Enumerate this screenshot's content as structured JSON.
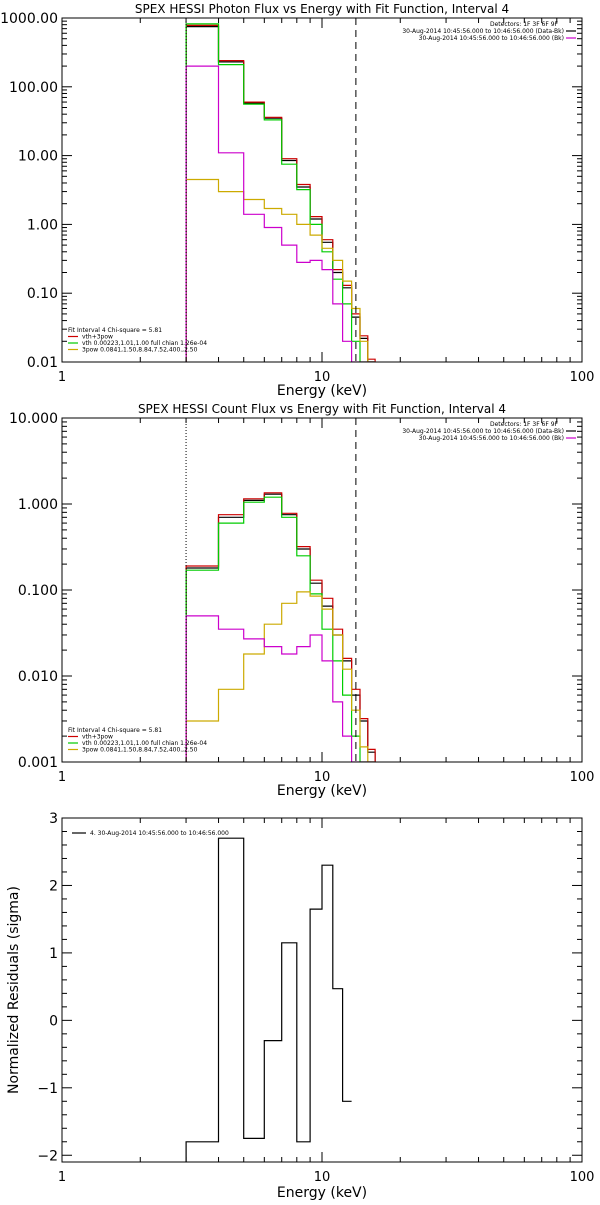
{
  "chart_data": [
    {
      "type": "line",
      "title": "SPEX HESSI Photon Flux vs Energy with Fit Function, Interval 4",
      "xlabel": "Energy (keV)",
      "ylabel": "",
      "x_scale": "log",
      "y_scale": "log",
      "xlim": [
        1,
        100
      ],
      "ylim": [
        0.01,
        1000
      ],
      "x_ticks": [
        {
          "v": 1,
          "label": "1"
        },
        {
          "v": 10,
          "label": "10"
        },
        {
          "v": 100,
          "label": "100"
        }
      ],
      "y_ticks": [
        {
          "v": 0.01,
          "label": "0.01"
        },
        {
          "v": 0.1,
          "label": "0.10"
        },
        {
          "v": 1,
          "label": "1.00"
        },
        {
          "v": 10,
          "label": "10.00"
        },
        {
          "v": 100,
          "label": "100.00"
        },
        {
          "v": 1000,
          "label": "1000.00"
        }
      ],
      "vlines": [
        {
          "x": 3.0,
          "style": "dotted",
          "color": "#000000"
        },
        {
          "x": 13.5,
          "style": "dashed",
          "color": "#000000"
        }
      ],
      "legend_top_right": {
        "header": "Detectors: 1F 3F 6F 9F",
        "entries": [
          {
            "label": "30-Aug-2014 10:45:56.000 to 10:46:56.000 (Data-Bk)",
            "color": "#000000"
          },
          {
            "label": "30-Aug-2014 10:45:56.000 to 10:46:56.000 (Bk)",
            "color": "#cc00cc"
          }
        ]
      },
      "legend_bottom_left": {
        "header": "Fit Interval  4    Chi-square = 5.81",
        "entries": [
          {
            "label": "vth+3pow",
            "color": "#cc0000"
          },
          {
            "label": "vth 0.00223,1.01,1.00  full chian 1.26e-04",
            "color": "#00cc00"
          },
          {
            "label": "3pow 0.0841,1.50,8.84,7.52,400.,2.50",
            "color": "#ccaa00"
          }
        ]
      },
      "edges": [
        3.0,
        4.0,
        5.0,
        6.0,
        7.0,
        8.0,
        9.0,
        10.0,
        11.0,
        12.0,
        13.0,
        14.0,
        15.0,
        16.0
      ],
      "series": [
        {
          "name": "Data-Bk",
          "color": "#000000",
          "values": [
            750,
            230,
            58,
            35,
            8.5,
            3.5,
            1.2,
            0.55,
            0.2,
            0.12,
            0.045,
            0.022,
            0.01
          ]
        },
        {
          "name": "vth+3pow",
          "color": "#cc0000",
          "values": [
            780,
            240,
            60,
            36,
            9,
            3.8,
            1.3,
            0.6,
            0.22,
            0.13,
            0.05,
            0.024,
            0.011
          ]
        },
        {
          "name": "vth",
          "color": "#00cc00",
          "values": [
            820,
            210,
            56,
            33,
            7.5,
            3.2,
            1.0,
            0.4,
            0.16,
            0.07,
            0.02,
            0.01,
            0.01
          ]
        },
        {
          "name": "3pow",
          "color": "#ccaa00",
          "values": [
            4.5,
            3.0,
            2.3,
            1.7,
            1.4,
            1.0,
            0.7,
            0.45,
            0.3,
            0.15,
            0.06,
            0.02,
            0.01
          ]
        },
        {
          "name": "Bk",
          "color": "#cc00cc",
          "values": [
            200,
            11,
            1.4,
            0.9,
            0.5,
            0.28,
            0.3,
            0.22,
            0.07,
            0.02,
            0.01,
            0.01,
            0.01
          ]
        }
      ]
    },
    {
      "type": "line",
      "title": "SPEX HESSI Count Flux vs Energy with Fit Function, Interval 4",
      "xlabel": "Energy (keV)",
      "ylabel": "",
      "x_scale": "log",
      "y_scale": "log",
      "xlim": [
        1,
        100
      ],
      "ylim": [
        0.001,
        10
      ],
      "x_ticks": [
        {
          "v": 1,
          "label": "1"
        },
        {
          "v": 10,
          "label": "10"
        },
        {
          "v": 100,
          "label": "100"
        }
      ],
      "y_ticks": [
        {
          "v": 0.001,
          "label": "0.001"
        },
        {
          "v": 0.01,
          "label": "0.010"
        },
        {
          "v": 0.1,
          "label": "0.100"
        },
        {
          "v": 1,
          "label": "1.000"
        },
        {
          "v": 10,
          "label": "10.000"
        }
      ],
      "vlines": [
        {
          "x": 3.0,
          "style": "dotted",
          "color": "#000000"
        },
        {
          "x": 13.5,
          "style": "dashed",
          "color": "#000000"
        }
      ],
      "legend_top_right": {
        "header": "Detectors: 1F 3F 6F 9F",
        "entries": [
          {
            "label": "30-Aug-2014 10:45:56.000 to 10:46:56.000 (Data-Bk)",
            "color": "#000000"
          },
          {
            "label": "30-Aug-2014 10:45:56.000 to 10:46:56.000 (Bk)",
            "color": "#cc00cc"
          }
        ]
      },
      "legend_bottom_left": {
        "header": "Fit Interval  4    Chi-square = 5.81",
        "entries": [
          {
            "label": "vth+3pow",
            "color": "#cc0000"
          },
          {
            "label": "vth 0.00223,1.01,1.00  full chian 1.26e-04",
            "color": "#00cc00"
          },
          {
            "label": "3pow 0.0841,1.50,8.84,7.52,400.,2.50",
            "color": "#ccaa00"
          }
        ]
      },
      "edges": [
        3.0,
        4.0,
        5.0,
        6.0,
        7.0,
        8.0,
        9.0,
        10.0,
        11.0,
        12.0,
        13.0,
        14.0,
        15.0,
        16.0
      ],
      "series": [
        {
          "name": "Data-Bk",
          "color": "#000000",
          "values": [
            0.18,
            0.7,
            1.1,
            1.3,
            0.75,
            0.3,
            0.12,
            0.065,
            0.03,
            0.015,
            0.006,
            0.003,
            0.0013
          ]
        },
        {
          "name": "vth+3pow",
          "color": "#cc0000",
          "values": [
            0.19,
            0.75,
            1.15,
            1.35,
            0.78,
            0.32,
            0.13,
            0.08,
            0.035,
            0.016,
            0.007,
            0.0032,
            0.0014
          ]
        },
        {
          "name": "vth",
          "color": "#00cc00",
          "values": [
            0.17,
            0.6,
            1.05,
            1.2,
            0.7,
            0.25,
            0.09,
            0.035,
            0.015,
            0.006,
            0.002,
            0.001,
            0.001
          ]
        },
        {
          "name": "3pow",
          "color": "#ccaa00",
          "values": [
            0.003,
            0.007,
            0.018,
            0.04,
            0.07,
            0.095,
            0.085,
            0.06,
            0.03,
            0.012,
            0.004,
            0.0015,
            0.001
          ]
        },
        {
          "name": "Bk",
          "color": "#cc00cc",
          "values": [
            0.05,
            0.035,
            0.027,
            0.022,
            0.018,
            0.022,
            0.03,
            0.015,
            0.005,
            0.002,
            0.001,
            0.001,
            0.001
          ]
        }
      ]
    },
    {
      "type": "line",
      "title": "",
      "xlabel": "Energy (keV)",
      "ylabel": "Normalized Residuals (sigma)",
      "x_scale": "log",
      "y_scale": "linear",
      "xlim": [
        1,
        100
      ],
      "ylim": [
        -2.1,
        3.0
      ],
      "x_ticks": [
        {
          "v": 1,
          "label": "1"
        },
        {
          "v": 10,
          "label": "10"
        },
        {
          "v": 100,
          "label": "100"
        }
      ],
      "y_ticks": [
        {
          "v": -2,
          "label": "−2"
        },
        {
          "v": -1,
          "label": "−1"
        },
        {
          "v": 0,
          "label": "0"
        },
        {
          "v": 1,
          "label": "1"
        },
        {
          "v": 2,
          "label": "2"
        },
        {
          "v": 3,
          "label": "3"
        }
      ],
      "legend_top_left": {
        "entries": [
          {
            "label": "4. 30-Aug-2014 10:45:56.000 to 10:46:56.000",
            "color": "#000000"
          }
        ]
      },
      "edges": [
        3.0,
        4.0,
        5.0,
        6.0,
        7.0,
        8.0,
        9.0,
        10.0,
        11.0,
        12.0,
        13.0
      ],
      "series": [
        {
          "name": "4. 30-Aug-2014 10:45:56.000 to 10:46:56.000",
          "color": "#000000",
          "values": [
            -1.8,
            2.7,
            -1.75,
            -0.3,
            1.15,
            -1.8,
            1.65,
            2.3,
            0.47,
            -1.2
          ]
        }
      ]
    }
  ]
}
